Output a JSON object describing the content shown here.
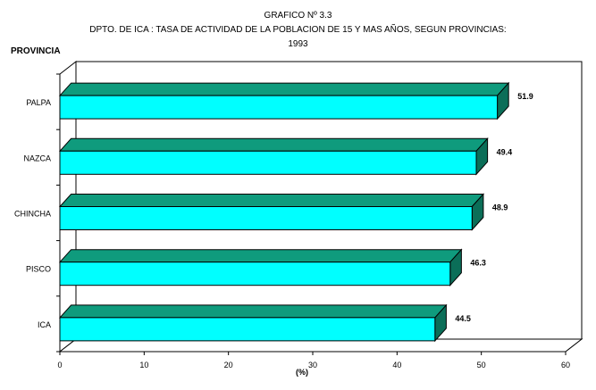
{
  "chart_data": {
    "type": "bar",
    "orientation": "horizontal",
    "style": "3d",
    "title": "GRAFICO Nº 3.3",
    "subtitle": "DPTO. DE ICA : TASA DE ACTIVIDAD DE LA POBLACION DE 15 Y MAS AÑOS, SEGUN PROVINCIAS:",
    "year": "1993",
    "ylabel": "PROVINCIA",
    "xlabel": "(%)",
    "categories": [
      "PALPA",
      "NAZCA",
      "CHINCHA",
      "PISCO",
      "ICA"
    ],
    "values": [
      51.9,
      49.4,
      48.9,
      46.3,
      44.5
    ],
    "value_labels": [
      "51.9",
      "49.4",
      "48.9",
      "46.3",
      "44.5"
    ],
    "xlim": [
      0,
      60
    ],
    "xticks": [
      "0",
      "10",
      "20",
      "30",
      "40",
      "50",
      "60"
    ],
    "grid": false,
    "colors": {
      "bar_front": "#00ffff",
      "bar_top": "#0f9b7d",
      "bar_side": "#0b6e58",
      "floor": "#ffffff"
    }
  }
}
